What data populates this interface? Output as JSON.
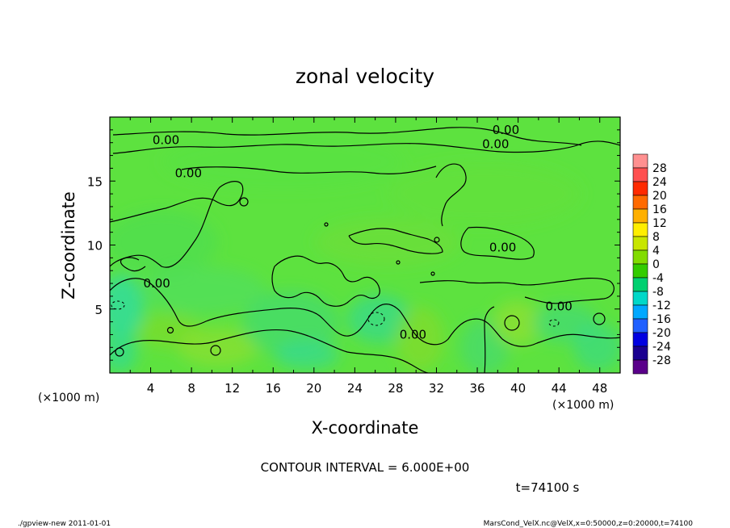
{
  "chart_data": {
    "type": "contour",
    "title": "zonal velocity",
    "xlabel": "X-coordinate",
    "ylabel": "Z-coordinate",
    "x_unit_label": "(×1000 m)",
    "x_unit_label_right": "(×1000 m)",
    "xlim": [
      0,
      50
    ],
    "ylim": [
      0,
      20
    ],
    "x_ticks": [
      4,
      8,
      12,
      16,
      20,
      24,
      28,
      32,
      36,
      40,
      44,
      48
    ],
    "y_ticks": [
      5,
      10,
      15
    ],
    "contour_interval_text": "CONTOUR INTERVAL = 6.000E+00",
    "time_text": "t=74100 s",
    "contour_labels": [
      {
        "text": "0.00",
        "x": 5.5,
        "y": 18.2
      },
      {
        "text": "0.00",
        "x": 7.7,
        "y": 15.6
      },
      {
        "text": "0.00",
        "x": 38.8,
        "y": 19.0
      },
      {
        "text": "0.00",
        "x": 37.8,
        "y": 17.9
      },
      {
        "text": "0.00",
        "x": 38.5,
        "y": 9.8
      },
      {
        "text": "0.00",
        "x": 4.6,
        "y": 7.0
      },
      {
        "text": "0.00",
        "x": 29.7,
        "y": 3.0
      },
      {
        "text": "0.00",
        "x": 44.0,
        "y": 5.2
      }
    ],
    "colorbar": {
      "levels": [
        28,
        24,
        20,
        16,
        12,
        8,
        4,
        0,
        -4,
        -8,
        -12,
        -16,
        -20,
        -24,
        -28
      ],
      "colors": [
        "#ff9090",
        "#ff5050",
        "#ff2a00",
        "#ff6a00",
        "#ffb000",
        "#ffee00",
        "#c8e600",
        "#82dc00",
        "#33cc00",
        "#00d070",
        "#00d8c8",
        "#00a8ff",
        "#2060ff",
        "#0000e0",
        "#1a0090",
        "#5a008a"
      ]
    }
  },
  "footer": {
    "left": "./gpview-new  2011-01-01",
    "right": "MarsCond_VelX.nc@VelX,x=0:50000,z=0:20000,t=74100"
  }
}
